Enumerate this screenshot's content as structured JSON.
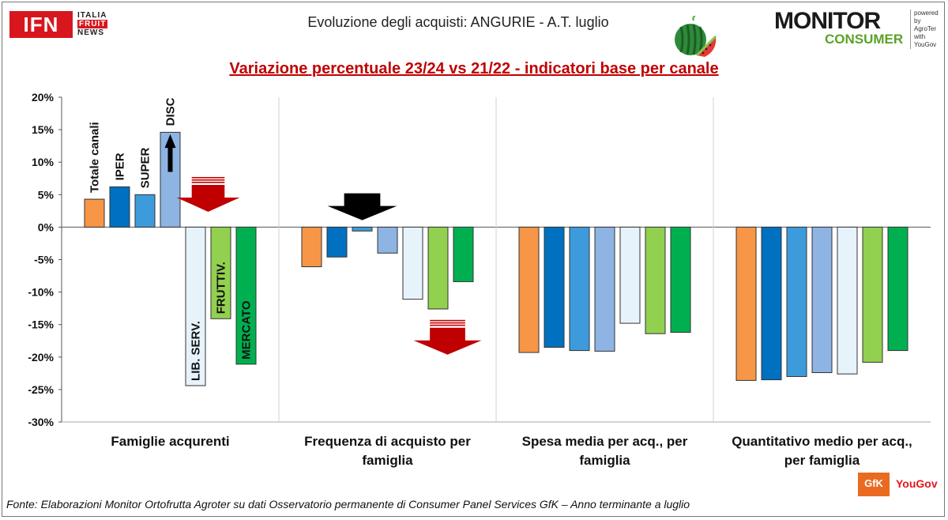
{
  "header": {
    "title": "Evoluzione degli acquisti: ANGURIE - A.T. luglio",
    "subtitle": "Variazione percentuale 23/24 vs 21/22 - indicatori base per canale",
    "logo_left": {
      "main": "IFN",
      "line1": "ITALIA",
      "line2": "FRUIT",
      "line3": "NEWS"
    },
    "logo_right": {
      "main": "MONITOR",
      "sub": "CONSUMER",
      "side1": "powered by",
      "side2": "AgroTer",
      "side3": "with",
      "side4": "YouGov"
    }
  },
  "footer": {
    "source": "Fonte: Elaborazioni Monitor Ortofrutta Agroter su dati Osservatorio permanente di Consumer Panel Services GfK  – Anno terminante a luglio",
    "gfk": "GfK",
    "yougov": "YouGov"
  },
  "colors": {
    "totale": "#f79646",
    "iper": "#0070c0",
    "super": "#3d9bdc",
    "disc": "#8db4e2",
    "libserv": "#e6f3fb",
    "fruttiv": "#92d050",
    "mercato": "#00b050",
    "red_arrow": "#c00000",
    "black_arrow": "#000000"
  },
  "chart_data": {
    "type": "bar",
    "categories": [
      [
        "Famiglie acqurenti"
      ],
      [
        "Frequenza di acquisto per",
        "famiglia"
      ],
      [
        "Spesa media per acq., per",
        "famiglia"
      ],
      [
        "Quantitativo medio per acq.,",
        "per famiglia"
      ]
    ],
    "series": [
      {
        "name": "Totale canali",
        "color": "#f79646",
        "values": [
          4.3,
          -6.1,
          -19.3,
          -23.6
        ]
      },
      {
        "name": "IPER",
        "color": "#0070c0",
        "values": [
          6.2,
          -4.6,
          -18.5,
          -23.5
        ]
      },
      {
        "name": "SUPER",
        "color": "#3d9bdc",
        "values": [
          5.0,
          -0.6,
          -19.0,
          -23.0
        ]
      },
      {
        "name": "DISC",
        "color": "#8db4e2",
        "values": [
          14.6,
          -4.0,
          -19.1,
          -22.4
        ]
      },
      {
        "name": "LIB. SERV.",
        "color": "#e6f3fb",
        "values": [
          -24.4,
          -11.1,
          -14.8,
          -22.6
        ]
      },
      {
        "name": "FRUTTIV.",
        "color": "#92d050",
        "values": [
          -14.1,
          -12.6,
          -16.4,
          -20.8
        ]
      },
      {
        "name": "MERCATO",
        "color": "#00b050",
        "values": [
          -21.1,
          -8.4,
          -16.2,
          -19.0
        ]
      }
    ],
    "ylim": [
      -30,
      20
    ],
    "yticks": [
      20,
      15,
      10,
      5,
      0,
      -5,
      -10,
      -15,
      -20,
      -25,
      -30
    ],
    "tick_suffix": "%",
    "xlabel": "",
    "ylabel": "",
    "grid": false,
    "legend": "labels on bars of first group",
    "annotations": [
      {
        "type": "arrow-down",
        "color": "red",
        "group": 0
      },
      {
        "type": "arrow-up",
        "color": "black",
        "group": 0,
        "series": 3
      },
      {
        "type": "arrow-down",
        "color": "black",
        "group": 1
      },
      {
        "type": "arrow-down",
        "color": "red",
        "group": 1
      }
    ]
  }
}
